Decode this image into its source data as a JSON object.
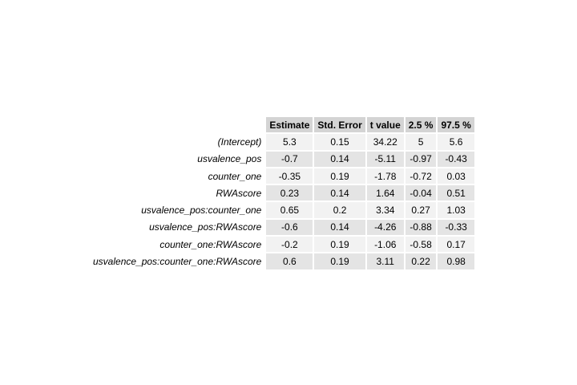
{
  "chart_data": {
    "type": "table",
    "columns": [
      "Estimate",
      "Std. Error",
      "t value",
      "2.5 %",
      "97.5 %"
    ],
    "rows": [
      {
        "term": "(Intercept)",
        "values": [
          "5.3",
          "0.15",
          "34.22",
          "5",
          "5.6"
        ]
      },
      {
        "term": "usvalence_pos",
        "values": [
          "-0.7",
          "0.14",
          "-5.11",
          "-0.97",
          "-0.43"
        ]
      },
      {
        "term": "counter_one",
        "values": [
          "-0.35",
          "0.19",
          "-1.78",
          "-0.72",
          "0.03"
        ]
      },
      {
        "term": "RWAscore",
        "values": [
          "0.23",
          "0.14",
          "1.64",
          "-0.04",
          "0.51"
        ]
      },
      {
        "term": "usvalence_pos:counter_one",
        "values": [
          "0.65",
          "0.2",
          "3.34",
          "0.27",
          "1.03"
        ]
      },
      {
        "term": "usvalence_pos:RWAscore",
        "values": [
          "-0.6",
          "0.14",
          "-4.26",
          "-0.88",
          "-0.33"
        ]
      },
      {
        "term": "counter_one:RWAscore",
        "values": [
          "-0.2",
          "0.19",
          "-1.06",
          "-0.58",
          "0.17"
        ]
      },
      {
        "term": "usvalence_pos:counter_one:RWAscore",
        "values": [
          "0.6",
          "0.19",
          "3.11",
          "0.22",
          "0.98"
        ]
      }
    ]
  },
  "colors": {
    "header_bg": "#d4d4d4",
    "row_odd_bg": "#f2f2f2",
    "row_even_bg": "#e4e4e4"
  }
}
